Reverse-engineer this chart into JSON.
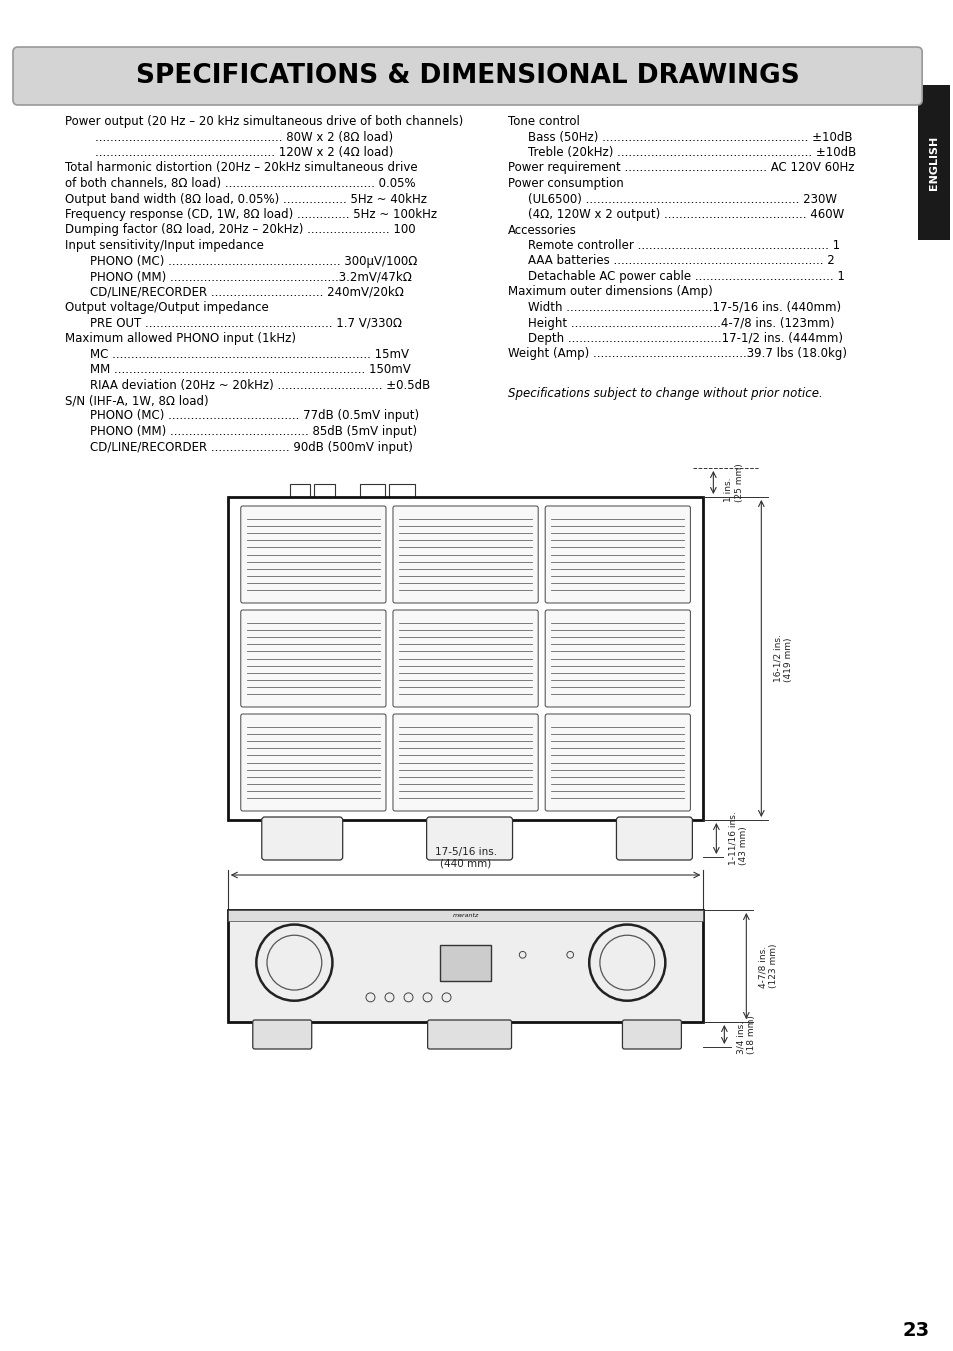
{
  "title": "SPECIFICATIONS & DIMENSIONAL DRAWINGS",
  "page_number": "23",
  "background_color": "#ffffff",
  "title_bg_color": "#d4d4d4",
  "title_text_color": "#000000",
  "specs_left": [
    [
      "Power output (20 Hz – 20 kHz simultaneous drive of both channels)",
      0
    ],
    [
      ".................................................. 80W x 2 (8Ω load)",
      30
    ],
    [
      "................................................ 120W x 2 (4Ω load)",
      30
    ],
    [
      "Total harmonic distortion (20Hz – 20kHz simultaneous drive",
      0
    ],
    [
      "of both channels, 8Ω load) ........................................ 0.05%",
      0
    ],
    [
      "Output band width (8Ω load, 0.05%) ................. 5Hz ~ 40kHz",
      0
    ],
    [
      "Frequency response (CD, 1W, 8Ω load) .............. 5Hz ~ 100kHz",
      0
    ],
    [
      "Dumping factor (8Ω load, 20Hz – 20kHz) ...................... 100",
      0
    ],
    [
      "Input sensitivity/Input impedance",
      0
    ],
    [
      "PHONO (MC) .............................................. 300μV/100Ω",
      25
    ],
    [
      "PHONO (MM) .............................................3.2mV/47kΩ",
      25
    ],
    [
      "CD/LINE/RECORDER .............................. 240mV/20kΩ",
      25
    ],
    [
      "Output voltage/Output impedance",
      0
    ],
    [
      "PRE OUT .................................................. 1.7 V/330Ω",
      25
    ],
    [
      "Maximum allowed PHONO input (1kHz)",
      0
    ],
    [
      "MC ..................................................................... 15mV",
      25
    ],
    [
      "MM ................................................................... 150mV",
      25
    ],
    [
      "RIAA deviation (20Hz ~ 20kHz) ............................ ±0.5dB",
      25
    ],
    [
      "S/N (IHF-A, 1W, 8Ω load)",
      0
    ],
    [
      "PHONO (MC) ................................... 77dB (0.5mV input)",
      25
    ],
    [
      "PHONO (MM) ..................................... 85dB (5mV input)",
      25
    ],
    [
      "CD/LINE/RECORDER ..................... 90dB (500mV input)",
      25
    ]
  ],
  "specs_right": [
    [
      "Tone control",
      0
    ],
    [
      "Bass (50Hz) ....................................................... ±10dB",
      20
    ],
    [
      "Treble (20kHz) .................................................... ±10dB",
      20
    ],
    [
      "Power requirement ...................................... AC 120V 60Hz",
      0
    ],
    [
      "Power consumption",
      0
    ],
    [
      "(UL6500) ......................................................... 230W",
      20
    ],
    [
      "(4Ω, 120W x 2 output) ...................................... 460W",
      20
    ],
    [
      "Accessories",
      0
    ],
    [
      "Remote controller ................................................... 1",
      20
    ],
    [
      "AAA batteries ........................................................ 2",
      20
    ],
    [
      "Detachable AC power cable ..................................... 1",
      20
    ],
    [
      "Maximum outer dimensions (Amp)",
      0
    ],
    [
      "Width .......................................17-5/16 ins. (440mm)",
      20
    ],
    [
      "Height ........................................4-7/8 ins. (123mm)",
      20
    ],
    [
      "Depth .........................................17-1/2 ins. (444mm)",
      20
    ],
    [
      "Weight (Amp) .........................................39.7 lbs (18.0kg)",
      0
    ]
  ],
  "note": "Specifications subject to change without prior notice.",
  "sidebar_text": "ENGLISH",
  "sidebar_bg": "#1a1a1a",
  "sidebar_text_color": "#ffffff"
}
